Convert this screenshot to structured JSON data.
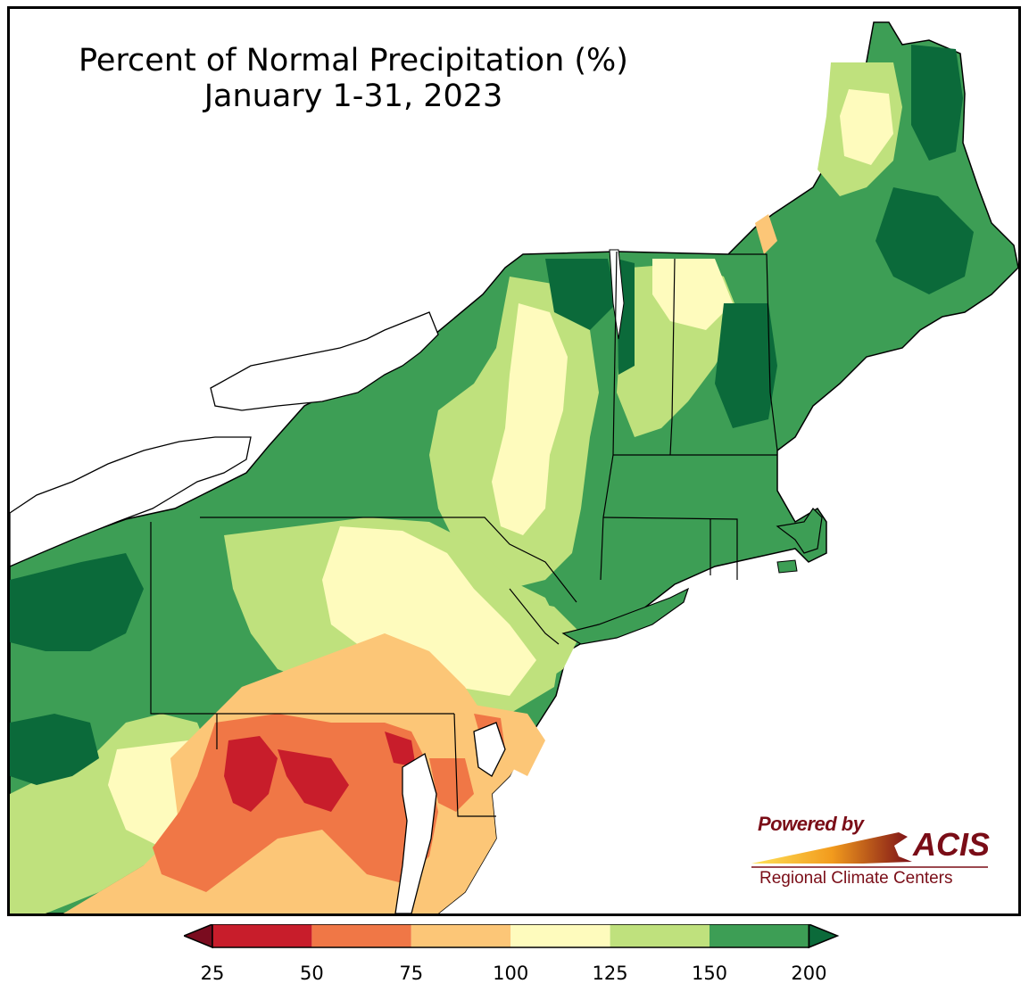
{
  "title": {
    "line1": "Percent of Normal Precipitation (%)",
    "line2": "January 1-31, 2023"
  },
  "logo": {
    "powered_by": "Powered by",
    "brand": "ACIS",
    "org": "Regional Climate Centers"
  },
  "legend": {
    "ticks": [
      "25",
      "50",
      "75",
      "100",
      "125",
      "150",
      "200"
    ],
    "colors": [
      "#7a0c1f",
      "#c81d2b",
      "#f07746",
      "#fcc677",
      "#fefbbd",
      "#bfe17d",
      "#3d9e55",
      "#0b6a3a"
    ],
    "bins": [
      {
        "range": "<25",
        "color": "#7a0c1f"
      },
      {
        "range": "25-50",
        "color": "#c81d2b"
      },
      {
        "range": "50-75",
        "color": "#f07746"
      },
      {
        "range": "75-100",
        "color": "#fcc677"
      },
      {
        "range": "100-125",
        "color": "#fefbbd"
      },
      {
        "range": "125-150",
        "color": "#bfe17d"
      },
      {
        "range": "150-200",
        "color": "#3d9e55"
      },
      {
        "range": ">200",
        "color": "#0b6a3a"
      }
    ]
  },
  "map": {
    "water_color": "#ffffff",
    "region": "Northeast United States"
  }
}
